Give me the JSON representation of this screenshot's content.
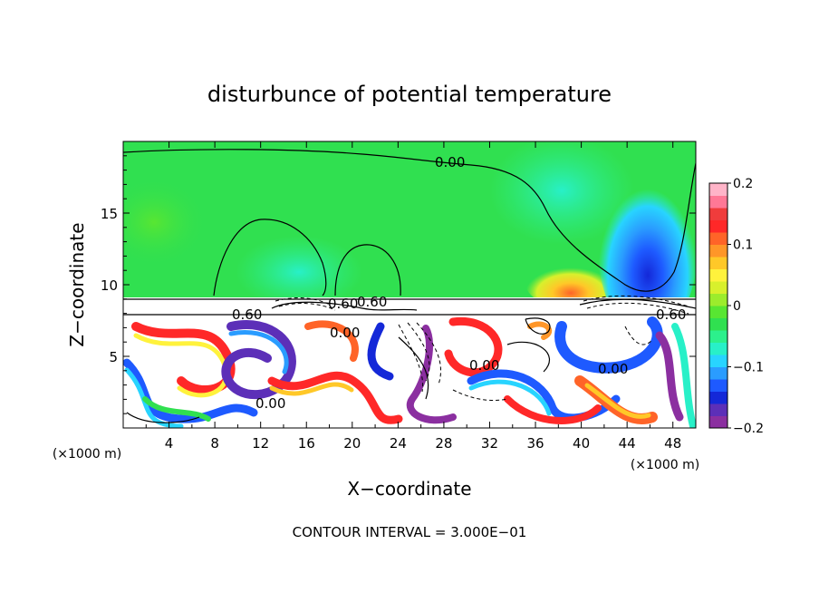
{
  "chart_data": {
    "type": "heatmap",
    "title": "disturbunce of potential temperature",
    "xlabel": "X−coordinate",
    "ylabel": "Z−coordinate",
    "x_unit": "(×1000 m)",
    "y_unit": "(×1000 m)",
    "xlim": [
      0,
      50
    ],
    "ylim": [
      0,
      20
    ],
    "x_ticks": [
      "4",
      "8",
      "12",
      "16",
      "20",
      "24",
      "28",
      "32",
      "36",
      "40",
      "44",
      "48"
    ],
    "y_ticks": [
      "5",
      "10",
      "15"
    ],
    "x_tick_values": [
      4,
      8,
      12,
      16,
      20,
      24,
      28,
      32,
      36,
      40,
      44,
      48
    ],
    "y_tick_values": [
      5,
      10,
      15
    ],
    "colorbar": {
      "range": [
        -0.2,
        0.2
      ],
      "labels": [
        "0.2",
        "0.1",
        "0",
        "−0.1",
        "−0.2"
      ],
      "label_values": [
        0.2,
        0.1,
        0,
        -0.1,
        -0.2
      ],
      "colors": [
        "#8b2fa0",
        "#5c2fb8",
        "#1428d8",
        "#1e5aff",
        "#2a9cff",
        "#28d4ff",
        "#28f0c8",
        "#2cf08c",
        "#30e050",
        "#58e632",
        "#9cec2c",
        "#d8f02c",
        "#fff23c",
        "#ffc828",
        "#ff9628",
        "#ff6428",
        "#ff2828",
        "#f03c3c",
        "#ff7896",
        "#ffb4c8"
      ]
    },
    "contour_labels": [
      "0.00",
      "0.60",
      "0.60",
      "0.60",
      "0.00",
      "0.00",
      "0.00",
      "0.00",
      "0.60"
    ],
    "contour_interval_text": "CONTOUR INTERVAL = 3.000E−01"
  }
}
